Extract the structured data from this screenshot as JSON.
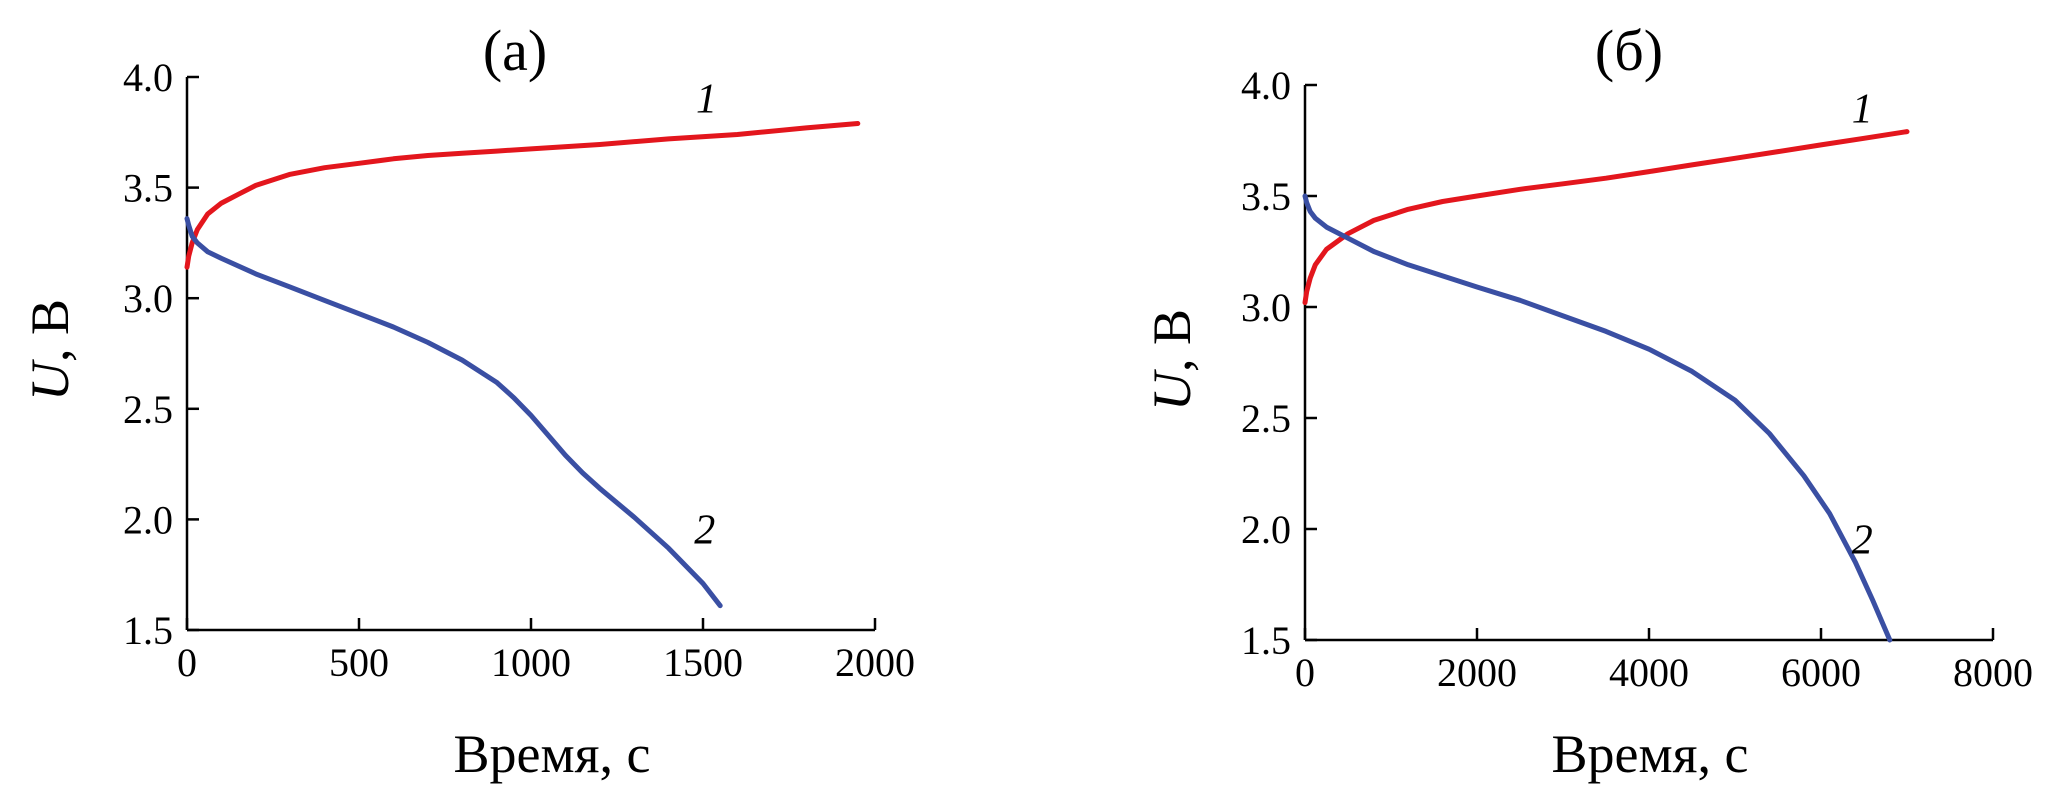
{
  "chart_data": [
    {
      "type": "line",
      "title": "(а)",
      "xlabel": "Время, с",
      "ylabel_var": "U",
      "ylabel_unit": ", В",
      "xlim": [
        0,
        2000
      ],
      "ylim": [
        1.5,
        4.0
      ],
      "xticks": [
        0,
        500,
        1000,
        1500,
        2000
      ],
      "xtick_labels": [
        "0",
        "500",
        "1000",
        "1500",
        "2000"
      ],
      "yticks": [
        1.5,
        2.0,
        2.5,
        3.0,
        3.5,
        4.0
      ],
      "ytick_labels": [
        "1.5",
        "2.0",
        "2.5",
        "3.0",
        "3.5",
        "4.0"
      ],
      "grid": false,
      "series": [
        {
          "name": "1",
          "color": "#e3161d",
          "label_at": [
            1510,
            3.84
          ],
          "x": [
            0,
            5,
            15,
            30,
            60,
            100,
            150,
            200,
            300,
            400,
            500,
            600,
            700,
            800,
            900,
            1000,
            1200,
            1400,
            1600,
            1800,
            1950
          ],
          "y": [
            3.14,
            3.19,
            3.25,
            3.31,
            3.38,
            3.43,
            3.47,
            3.51,
            3.56,
            3.59,
            3.61,
            3.63,
            3.645,
            3.655,
            3.665,
            3.675,
            3.695,
            3.72,
            3.74,
            3.77,
            3.79
          ]
        },
        {
          "name": "2",
          "color": "#3a4fa3",
          "label_at": [
            1505,
            1.89
          ],
          "x": [
            0,
            5,
            15,
            30,
            60,
            100,
            200,
            300,
            400,
            500,
            600,
            700,
            800,
            900,
            950,
            1000,
            1050,
            1100,
            1150,
            1200,
            1300,
            1400,
            1500,
            1550
          ],
          "y": [
            3.36,
            3.33,
            3.28,
            3.25,
            3.21,
            3.18,
            3.11,
            3.05,
            2.99,
            2.93,
            2.87,
            2.8,
            2.72,
            2.62,
            2.55,
            2.47,
            2.38,
            2.29,
            2.21,
            2.14,
            2.01,
            1.87,
            1.71,
            1.61
          ]
        }
      ]
    },
    {
      "type": "line",
      "title": "(б)",
      "xlabel": "Время, с",
      "ylabel_var": "U",
      "ylabel_unit": ", В",
      "xlim": [
        0,
        8000
      ],
      "ylim": [
        1.5,
        4.0
      ],
      "xticks": [
        0,
        2000,
        4000,
        6000,
        8000
      ],
      "xtick_labels": [
        "0",
        "2000",
        "4000",
        "6000",
        "8000"
      ],
      "yticks": [
        1.5,
        2.0,
        2.5,
        3.0,
        3.5,
        4.0
      ],
      "ytick_labels": [
        "1.5",
        "2.0",
        "2.5",
        "3.0",
        "3.5",
        "4.0"
      ],
      "grid": false,
      "series": [
        {
          "name": "1",
          "color": "#e3161d",
          "label_at": [
            6480,
            3.83
          ],
          "x": [
            0,
            20,
            60,
            120,
            250,
            500,
            800,
            1200,
            1600,
            2000,
            2500,
            3000,
            3500,
            4000,
            4500,
            5000,
            5500,
            6000,
            6500,
            7000
          ],
          "y": [
            3.02,
            3.07,
            3.13,
            3.19,
            3.26,
            3.33,
            3.39,
            3.44,
            3.475,
            3.5,
            3.53,
            3.555,
            3.58,
            3.61,
            3.64,
            3.67,
            3.7,
            3.73,
            3.76,
            3.79
          ]
        },
        {
          "name": "2",
          "color": "#3a4fa3",
          "label_at": [
            6480,
            1.89
          ],
          "x": [
            0,
            20,
            60,
            120,
            250,
            500,
            800,
            1200,
            1600,
            2000,
            2500,
            3000,
            3500,
            4000,
            4500,
            5000,
            5400,
            5800,
            6100,
            6400,
            6600,
            6800
          ],
          "y": [
            3.5,
            3.47,
            3.43,
            3.4,
            3.36,
            3.31,
            3.25,
            3.19,
            3.14,
            3.09,
            3.03,
            2.96,
            2.89,
            2.81,
            2.71,
            2.58,
            2.43,
            2.24,
            2.07,
            1.85,
            1.68,
            1.5
          ]
        }
      ]
    }
  ]
}
